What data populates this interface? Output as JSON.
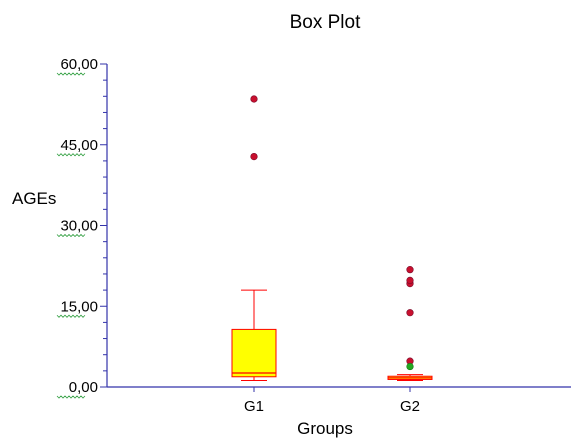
{
  "chart_data": {
    "type": "box",
    "title": "Box Plot",
    "xlabel": "Groups",
    "ylabel": "AGEs",
    "ylim": [
      0,
      60
    ],
    "y_ticks": [
      0,
      15,
      30,
      45,
      60
    ],
    "y_tick_labels": [
      "0,00",
      "15,00",
      "30,00",
      "45,00",
      "60,00"
    ],
    "categories": [
      "G1",
      "G2"
    ],
    "boxes": [
      {
        "category": "G1",
        "whisker_low": 1.2,
        "q1": 1.9,
        "median": 2.6,
        "q3": 10.7,
        "whisker_high": 18.0,
        "outliers": [
          42.8,
          53.5
        ],
        "far_outliers": []
      },
      {
        "category": "G2",
        "whisker_low": 1.2,
        "q1": 1.4,
        "median": 1.7,
        "q3": 2.0,
        "whisker_high": 2.3,
        "outliers": [
          4.8,
          13.8,
          19.2,
          19.8,
          21.8
        ],
        "far_outliers": [
          3.8
        ]
      }
    ],
    "grid": false,
    "colors": {
      "box_fill": "#ffff00",
      "box_edge": "#ff0000",
      "outlier": "#c8102e",
      "far_outlier": "#22aa22",
      "axis": "#3333aa"
    }
  }
}
